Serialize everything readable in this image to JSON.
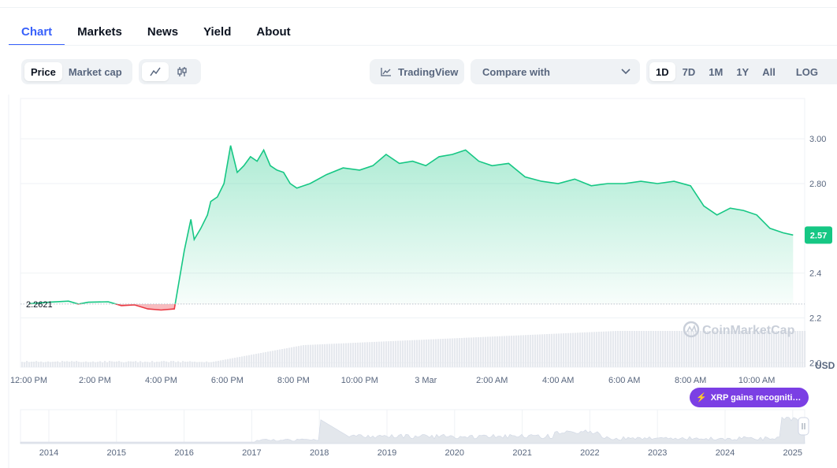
{
  "tabs": [
    {
      "label": "Chart",
      "active": true
    },
    {
      "label": "Markets",
      "active": false
    },
    {
      "label": "News",
      "active": false
    },
    {
      "label": "Yield",
      "active": false
    },
    {
      "label": "About",
      "active": false
    }
  ],
  "toolbar": {
    "metric": [
      {
        "label": "Price",
        "active": true
      },
      {
        "label": "Market cap",
        "active": false
      }
    ],
    "chart_style_icons": [
      "line-chart-icon",
      "candlestick-icon"
    ],
    "tradingview_label": "TradingView",
    "compare_label": "Compare with",
    "ranges": [
      {
        "label": "1D",
        "active": true
      },
      {
        "label": "7D",
        "active": false
      },
      {
        "label": "1M",
        "active": false
      },
      {
        "label": "1Y",
        "active": false
      },
      {
        "label": "All",
        "active": false
      }
    ],
    "log_label": "LOG",
    "more_label": "···"
  },
  "colors": {
    "up": "#16c784",
    "down": "#ea3943",
    "accent": "#3861fb",
    "news": "#7b3fe4"
  },
  "chart_data": {
    "type": "area",
    "y_axis_unit": "USD",
    "y_ticks": [
      "3.00",
      "2.80",
      "2.4",
      "2.2",
      "2.0"
    ],
    "ylim": [
      1.98,
      3.18
    ],
    "reference_price": 2.2621,
    "reference_label": "2.2621",
    "current_price": 2.57,
    "current_label": "2.57",
    "x_ticks": [
      "12:00 PM",
      "2:00 PM",
      "4:00 PM",
      "6:00 PM",
      "8:00 PM",
      "10:00 PM",
      "3 Mar",
      "2:00 AM",
      "4:00 AM",
      "6:00 AM",
      "8:00 AM",
      "10:00 AM"
    ],
    "x_hours": [
      12,
      14,
      16,
      18,
      20,
      22,
      24,
      26,
      28,
      30,
      32,
      34
    ],
    "series": [
      {
        "x": [
          12.0,
          12.6,
          13.2,
          13.5,
          13.8,
          14.4,
          14.8,
          15.2,
          15.6,
          16.0,
          16.4,
          16.7,
          16.9,
          17.0,
          17.2,
          17.4,
          17.5,
          17.7,
          17.9,
          18.1,
          18.3,
          18.5,
          18.7,
          18.9,
          19.1,
          19.3,
          19.5,
          19.7,
          19.9,
          20.1,
          20.5,
          21.0,
          21.5,
          22.0,
          22.4,
          22.8,
          23.2,
          23.6,
          24.0,
          24.4,
          24.8,
          25.2,
          25.6,
          26.0,
          26.5,
          27.0,
          27.5,
          28.0,
          28.5,
          29.0,
          29.5,
          30.0,
          30.5,
          31.0,
          31.5,
          32.0,
          32.4,
          32.8,
          33.2,
          33.6,
          34.0,
          34.4,
          34.8,
          35.1
        ],
        "y": [
          2.263,
          2.27,
          2.275,
          2.262,
          2.27,
          2.272,
          2.255,
          2.258,
          2.24,
          2.235,
          2.24,
          2.5,
          2.64,
          2.55,
          2.6,
          2.66,
          2.72,
          2.74,
          2.8,
          2.97,
          2.85,
          2.88,
          2.92,
          2.9,
          2.95,
          2.88,
          2.86,
          2.85,
          2.8,
          2.78,
          2.8,
          2.84,
          2.87,
          2.86,
          2.88,
          2.93,
          2.89,
          2.9,
          2.88,
          2.92,
          2.93,
          2.95,
          2.9,
          2.88,
          2.89,
          2.83,
          2.81,
          2.8,
          2.82,
          2.79,
          2.8,
          2.8,
          2.81,
          2.8,
          2.81,
          2.79,
          2.7,
          2.66,
          2.69,
          2.68,
          2.66,
          2.6,
          2.58,
          2.57
        ]
      }
    ],
    "volume_bars": "rising",
    "watermark": "CoinMarketCap"
  },
  "navigator": {
    "years": [
      "2014",
      "2015",
      "2016",
      "2017",
      "2018",
      "2019",
      "2020",
      "2021",
      "2022",
      "2023",
      "2024",
      "2025"
    ]
  },
  "news_badge": {
    "label": "XRP gains recogniti…",
    "icon": "lightning-icon"
  }
}
